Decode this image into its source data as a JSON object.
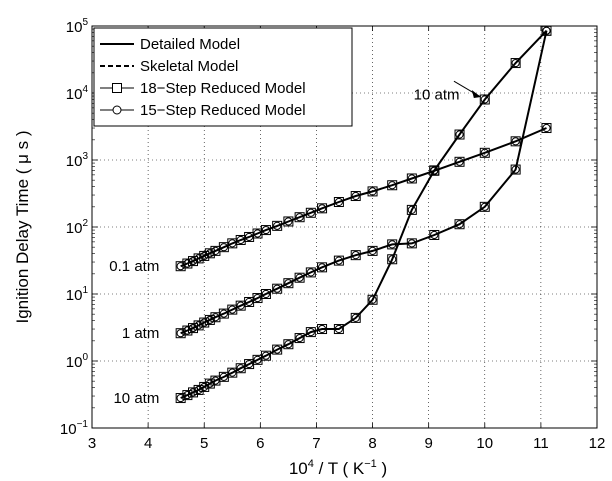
{
  "chart_data": {
    "type": "line",
    "xlabel_base": "10",
    "xlabel_exp": "4",
    "xlabel_rest": " / T   ( K",
    "xlabel_unit_exp": "−1",
    "xlabel_close": " )",
    "ylabel": "Ignition Delay Time   ( μ s )",
    "xlim": [
      3,
      12
    ],
    "ylim": [
      0.1,
      100000
    ],
    "yscale": "log",
    "grid": true,
    "legend_position": "top-left",
    "x_ticks": [
      "3",
      "4",
      "5",
      "6",
      "7",
      "8",
      "9",
      "10",
      "11",
      "12"
    ],
    "y_ticks": [
      {
        "base": "10",
        "exp": "−1"
      },
      {
        "base": "10",
        "exp": "0"
      },
      {
        "base": "10",
        "exp": "1"
      },
      {
        "base": "10",
        "exp": "2"
      },
      {
        "base": "10",
        "exp": "3"
      },
      {
        "base": "10",
        "exp": "4"
      },
      {
        "base": "10",
        "exp": "5"
      }
    ],
    "legend": [
      {
        "label": "Detailed Model",
        "style": "solid"
      },
      {
        "label": "Skeletal Model",
        "style": "dashed"
      },
      {
        "label": "18−Step Reduced Model",
        "style": "square"
      },
      {
        "label": "15−Step Reduced Model",
        "style": "circle"
      }
    ],
    "annotations": [
      {
        "text": "10 atm",
        "x": 9.55,
        "y": 9500
      },
      {
        "text": "0.1 atm",
        "x": 4.2,
        "y": 26
      },
      {
        "text": "1 atm",
        "x": 4.2,
        "y": 2.6
      },
      {
        "text": "10 atm",
        "x": 4.2,
        "y": 0.28
      }
    ],
    "series": [
      {
        "x": [
          4.58,
          4.7,
          4.8,
          4.9,
          5.0,
          5.1,
          5.2,
          5.35,
          5.5,
          5.65,
          5.8,
          5.95,
          6.1,
          6.3,
          6.5,
          6.7,
          6.9,
          7.1,
          7.4,
          7.7,
          8.0,
          8.35,
          8.7,
          9.1,
          9.55,
          10.0,
          10.55,
          11.1
        ],
        "values": [
          26,
          28.5,
          31,
          34,
          37,
          40.5,
          44,
          50,
          57,
          64,
          71,
          80,
          90,
          104,
          121,
          140,
          163,
          190,
          236,
          290,
          340,
          420,
          530,
          690,
          940,
          1280,
          1900,
          3000
        ]
      },
      {
        "x": [
          4.58,
          4.7,
          4.8,
          4.9,
          5.0,
          5.1,
          5.2,
          5.35,
          5.5,
          5.65,
          5.8,
          5.95,
          6.1,
          6.3,
          6.5,
          6.7,
          6.9,
          7.1,
          7.4,
          7.7,
          8.0,
          8.35,
          8.7,
          9.1,
          9.55,
          10.0,
          10.55,
          11.1
        ],
        "values": [
          2.6,
          2.85,
          3.1,
          3.4,
          3.75,
          4.1,
          4.5,
          5.1,
          5.85,
          6.7,
          7.6,
          8.7,
          10,
          12,
          14.5,
          17.5,
          21,
          25,
          31.5,
          38,
          44,
          55,
          57,
          76,
          110,
          200,
          720,
          85000
        ]
      },
      {
        "x": [
          4.58,
          4.7,
          4.8,
          4.9,
          5.0,
          5.1,
          5.2,
          5.35,
          5.5,
          5.65,
          5.8,
          5.95,
          6.1,
          6.3,
          6.5,
          6.7,
          6.9,
          7.1,
          7.4,
          7.7,
          8.0,
          8.35,
          8.7,
          9.1,
          9.55,
          10.0,
          10.55,
          11.1
        ],
        "values": [
          0.28,
          0.31,
          0.34,
          0.37,
          0.41,
          0.46,
          0.51,
          0.58,
          0.67,
          0.78,
          0.9,
          1.04,
          1.2,
          1.48,
          1.78,
          2.2,
          2.7,
          3.0,
          3.0,
          4.4,
          8.2,
          33,
          180,
          700,
          2400,
          8000,
          28000,
          85000
        ]
      }
    ]
  }
}
